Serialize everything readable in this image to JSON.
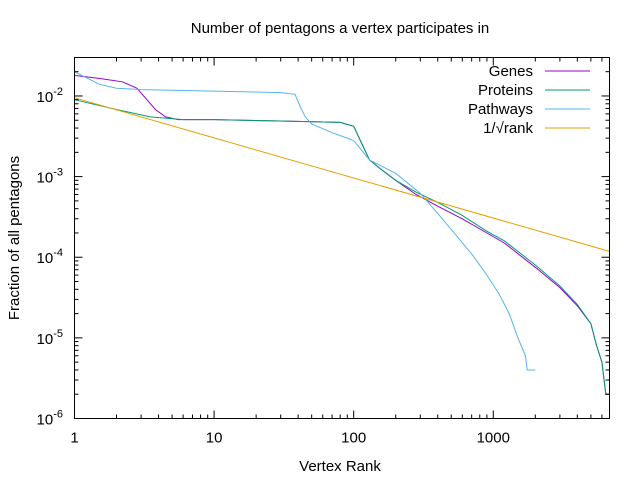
{
  "chart_data": {
    "type": "line",
    "title": "Number of pentagons a vertex participates in",
    "xlabel": "Vertex Rank",
    "ylabel": "Fraction of all pentagons",
    "xscale": "log",
    "yscale": "log",
    "xlim": [
      1,
      6800
    ],
    "ylim": [
      1e-06,
      0.03
    ],
    "grid": false,
    "legend_position": "top-right",
    "x_ticks": [
      {
        "value": 1,
        "label": "1"
      },
      {
        "value": 10,
        "label": "10"
      },
      {
        "value": 100,
        "label": "100"
      },
      {
        "value": 1000,
        "label": "1000"
      }
    ],
    "y_ticks": [
      {
        "value": 1e-06,
        "mant": "10",
        "exp": "-6"
      },
      {
        "value": 1e-05,
        "mant": "10",
        "exp": "-5"
      },
      {
        "value": 0.0001,
        "mant": "10",
        "exp": "-4"
      },
      {
        "value": 0.001,
        "mant": "10",
        "exp": "-3"
      },
      {
        "value": 0.01,
        "mant": "10",
        "exp": "-2"
      }
    ],
    "series": [
      {
        "name": "Genes",
        "color": "#9400d3",
        "points": [
          [
            1,
            0.018
          ],
          [
            1.5,
            0.0165
          ],
          [
            2.2,
            0.015
          ],
          [
            2.8,
            0.0125
          ],
          [
            3.3,
            0.009
          ],
          [
            3.8,
            0.0068
          ],
          [
            4.5,
            0.0055
          ],
          [
            5.5,
            0.0051
          ],
          [
            10,
            0.0051
          ],
          [
            30,
            0.0049
          ],
          [
            80,
            0.0047
          ],
          [
            100,
            0.0042
          ],
          [
            115,
            0.0025
          ],
          [
            130,
            0.0016
          ],
          [
            160,
            0.0012
          ],
          [
            200,
            0.0009
          ],
          [
            280,
            0.0006
          ],
          [
            400,
            0.00043
          ],
          [
            600,
            0.0003
          ],
          [
            900,
            0.0002
          ],
          [
            1200,
            0.00015
          ],
          [
            2000,
            7.5e-05
          ],
          [
            3000,
            4.2e-05
          ],
          [
            4000,
            2.5e-05
          ],
          [
            5000,
            1.5e-05
          ],
          [
            5500,
            8e-06
          ],
          [
            6000,
            5e-06
          ],
          [
            6400,
            2e-06
          ],
          [
            6800,
            2e-06
          ]
        ]
      },
      {
        "name": "Proteins",
        "color": "#009e73",
        "points": [
          [
            1,
            0.009
          ],
          [
            2,
            0.0068
          ],
          [
            3.5,
            0.0055
          ],
          [
            6,
            0.0051
          ],
          [
            10,
            0.0051
          ],
          [
            30,
            0.0049
          ],
          [
            80,
            0.0047
          ],
          [
            100,
            0.0042
          ],
          [
            115,
            0.0025
          ],
          [
            130,
            0.0016
          ],
          [
            160,
            0.0012
          ],
          [
            200,
            0.0009
          ],
          [
            280,
            0.00064
          ],
          [
            400,
            0.00048
          ],
          [
            600,
            0.00033
          ],
          [
            900,
            0.00021
          ],
          [
            1200,
            0.00016
          ],
          [
            2000,
            8e-05
          ],
          [
            3000,
            4.4e-05
          ],
          [
            4000,
            2.6e-05
          ],
          [
            5000,
            1.5e-05
          ],
          [
            5500,
            8e-06
          ],
          [
            6000,
            5e-06
          ],
          [
            6400,
            2e-06
          ],
          [
            6800,
            2e-06
          ]
        ]
      },
      {
        "name": "Pathways",
        "color": "#56b4e9",
        "points": [
          [
            1,
            0.02
          ],
          [
            1.5,
            0.014
          ],
          [
            2,
            0.0125
          ],
          [
            3,
            0.012
          ],
          [
            10,
            0.0115
          ],
          [
            30,
            0.011
          ],
          [
            38,
            0.0105
          ],
          [
            42,
            0.007
          ],
          [
            45,
            0.0055
          ],
          [
            50,
            0.0045
          ],
          [
            70,
            0.0035
          ],
          [
            90,
            0.003
          ],
          [
            100,
            0.0028
          ],
          [
            130,
            0.0016
          ],
          [
            200,
            0.0011
          ],
          [
            300,
            0.00062
          ],
          [
            400,
            0.00035
          ],
          [
            500,
            0.00022
          ],
          [
            700,
            0.00011
          ],
          [
            900,
            6e-05
          ],
          [
            1100,
            3.5e-05
          ],
          [
            1300,
            2e-05
          ],
          [
            1500,
            1e-05
          ],
          [
            1700,
            6e-06
          ],
          [
            1750,
            4e-06
          ],
          [
            2000,
            4e-06
          ]
        ]
      },
      {
        "name": "1/√rank",
        "color": "#e69f00",
        "points": [
          [
            1,
            0.0095
          ],
          [
            6800,
            0.000118
          ]
        ]
      }
    ]
  }
}
